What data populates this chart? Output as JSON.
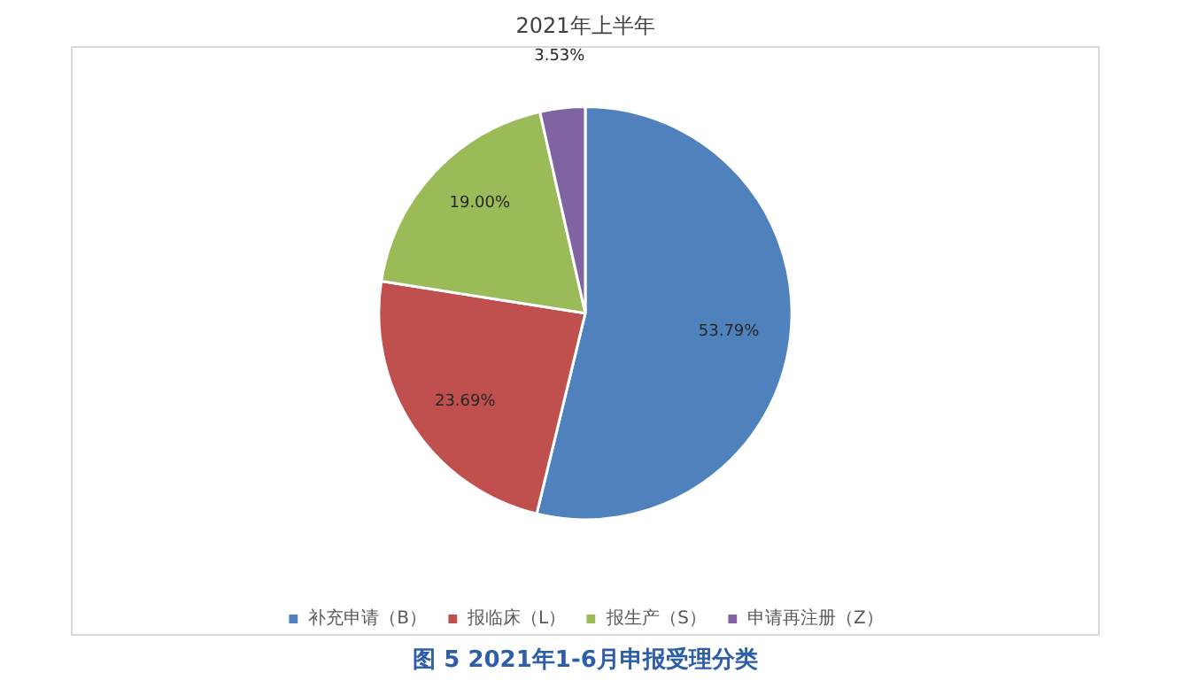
{
  "chart_data": {
    "type": "pie",
    "title": "2021年上半年",
    "categories": [
      "补充申请（B）",
      "报临床（L）",
      "报生产（S）",
      "申请再注册（Z）"
    ],
    "values": [
      53.79,
      23.69,
      19.0,
      3.53
    ],
    "value_labels": [
      "53.79%",
      "23.69%",
      "19.00%",
      "3.53%"
    ],
    "colors": [
      "#4f81bd",
      "#c0504d",
      "#9bbb59",
      "#8064a2"
    ],
    "legend": "bottom",
    "annotations": [
      "图 5 2021年1-6月申报受理分类"
    ]
  }
}
